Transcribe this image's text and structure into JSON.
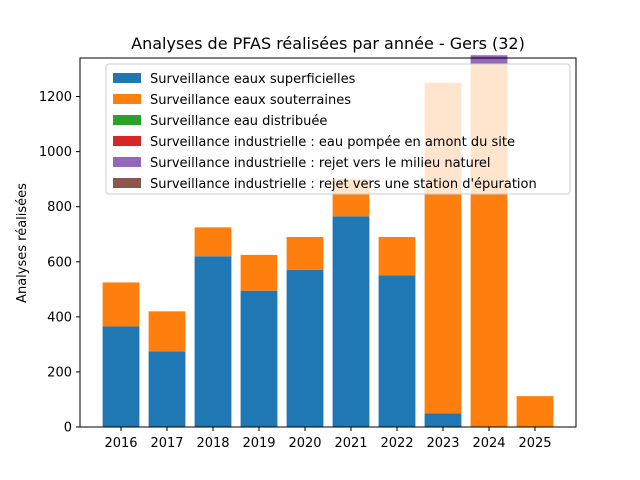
{
  "chart_data": {
    "type": "bar",
    "stacked": true,
    "title": "Analyses de PFAS réalisées par année - Gers (32)",
    "xlabel": "",
    "ylabel": "Analyses réalisées",
    "ylim": [
      0,
      1340
    ],
    "yticks": [
      0,
      200,
      400,
      600,
      800,
      1000,
      1200
    ],
    "categories": [
      "2016",
      "2017",
      "2018",
      "2019",
      "2020",
      "2021",
      "2022",
      "2023",
      "2024",
      "2025"
    ],
    "legend_position": "top-center",
    "grid": false,
    "series": [
      {
        "name": "Surveillance eaux superficielles",
        "color": "#1f77b4",
        "values": [
          365,
          275,
          620,
          495,
          570,
          765,
          550,
          50,
          0,
          0
        ]
      },
      {
        "name": "Surveillance eaux souterraines",
        "color": "#ff7f0e",
        "values": [
          160,
          145,
          105,
          130,
          120,
          135,
          140,
          1200,
          1320,
          112
        ]
      },
      {
        "name": "Surveillance eau distribuée",
        "color": "#2ca02c",
        "values": [
          0,
          0,
          0,
          0,
          0,
          0,
          0,
          0,
          0,
          0
        ]
      },
      {
        "name": "Surveillance industrielle : eau pompée en amont du site",
        "color": "#d62728",
        "values": [
          0,
          0,
          0,
          0,
          0,
          0,
          0,
          0,
          0,
          0
        ]
      },
      {
        "name": "Surveillance industrielle : rejet vers le milieu naturel",
        "color": "#9467bd",
        "values": [
          0,
          0,
          0,
          0,
          0,
          0,
          0,
          0,
          30,
          0
        ]
      },
      {
        "name": "Surveillance industrielle : rejet vers une station d'épuration",
        "color": "#8c564b",
        "values": [
          0,
          0,
          0,
          0,
          0,
          0,
          0,
          0,
          0,
          0
        ]
      }
    ]
  }
}
